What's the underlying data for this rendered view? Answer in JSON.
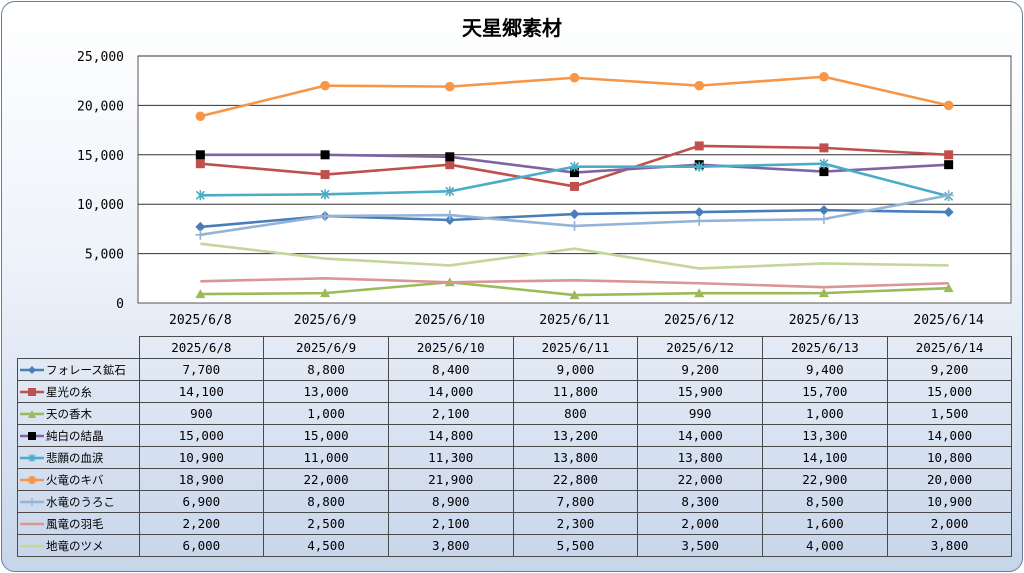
{
  "chart_data": {
    "type": "line",
    "title": "天星郷素材",
    "categories": [
      "2025/6/8",
      "2025/6/9",
      "2025/6/10",
      "2025/6/11",
      "2025/6/12",
      "2025/6/13",
      "2025/6/14"
    ],
    "ylim": [
      0,
      25000
    ],
    "yticks": [
      "0",
      "5,000",
      "10,000",
      "15,000",
      "20,000",
      "25,000"
    ],
    "grid": true,
    "legend": "table-below",
    "series": [
      {
        "name": "フォレース鉱石",
        "color": "#4a7ebb",
        "marker": "diamond",
        "values": [
          7700,
          8800,
          8400,
          9000,
          9200,
          9400,
          9200
        ],
        "labels": [
          "7,700",
          "8,800",
          "8,400",
          "9,000",
          "9,200",
          "9,400",
          "9,200"
        ]
      },
      {
        "name": "星光の糸",
        "color": "#c0504d",
        "marker": "square",
        "values": [
          14100,
          13000,
          14000,
          11800,
          15900,
          15700,
          15000
        ],
        "labels": [
          "14,100",
          "13,000",
          "14,000",
          "11,800",
          "15,900",
          "15,700",
          "15,000"
        ]
      },
      {
        "name": "天の香木",
        "color": "#9bbb59",
        "marker": "triangle",
        "values": [
          900,
          1000,
          2100,
          800,
          990,
          1000,
          1500
        ],
        "labels": [
          "900",
          "1,000",
          "2,100",
          "800",
          "990",
          "1,000",
          "1,500"
        ]
      },
      {
        "name": "純白の結晶",
        "color": "#8064a2",
        "marker": "blacksquare",
        "values": [
          15000,
          15000,
          14800,
          13200,
          14000,
          13300,
          14000
        ],
        "labels": [
          "15,000",
          "15,000",
          "14,800",
          "13,200",
          "14,000",
          "13,300",
          "14,000"
        ]
      },
      {
        "name": "悲願の血涙",
        "color": "#4bacc6",
        "marker": "star",
        "values": [
          10900,
          11000,
          11300,
          13800,
          13800,
          14100,
          10800
        ],
        "labels": [
          "10,900",
          "11,000",
          "11,300",
          "13,800",
          "13,800",
          "14,100",
          "10,800"
        ]
      },
      {
        "name": "火竜のキバ",
        "color": "#f79646",
        "marker": "circle",
        "values": [
          18900,
          22000,
          21900,
          22800,
          22000,
          22900,
          20000
        ],
        "labels": [
          "18,900",
          "22,000",
          "21,900",
          "22,800",
          "22,000",
          "22,900",
          "20,000"
        ]
      },
      {
        "name": "水竜のうろこ",
        "color": "#95b3d7",
        "marker": "plus",
        "values": [
          6900,
          8800,
          8900,
          7800,
          8300,
          8500,
          10900
        ],
        "labels": [
          "6,900",
          "8,800",
          "8,900",
          "7,800",
          "8,300",
          "8,500",
          "10,900"
        ]
      },
      {
        "name": "風竜の羽毛",
        "color": "#d99694",
        "marker": "none",
        "values": [
          2200,
          2500,
          2100,
          2300,
          2000,
          1600,
          2000
        ],
        "labels": [
          "2,200",
          "2,500",
          "2,100",
          "2,300",
          "2,000",
          "1,600",
          "2,000"
        ]
      },
      {
        "name": "地竜のツメ",
        "color": "#c3d69b",
        "marker": "none",
        "values": [
          6000,
          4500,
          3800,
          5500,
          3500,
          4000,
          3800
        ],
        "labels": [
          "6,000",
          "4,500",
          "3,800",
          "5,500",
          "3,500",
          "4,000",
          "3,800"
        ]
      }
    ]
  }
}
